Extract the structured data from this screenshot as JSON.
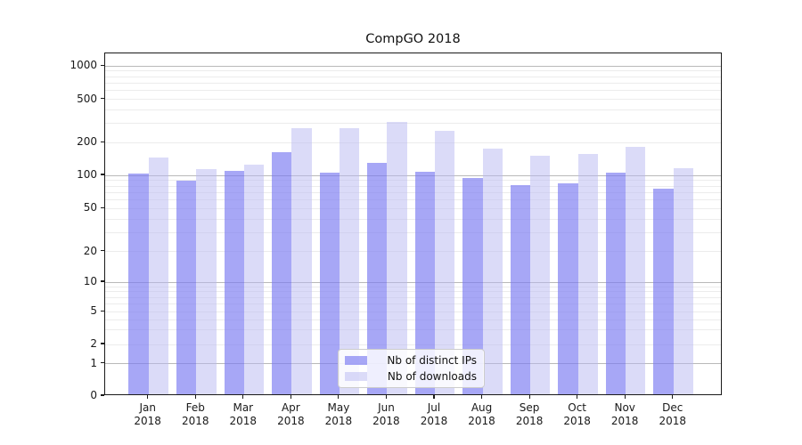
{
  "chart_data": {
    "type": "bar",
    "title": "CompGO 2018",
    "categories": [
      "Jan 2018",
      "Feb 2018",
      "Mar 2018",
      "Apr 2018",
      "May 2018",
      "Jun 2018",
      "Jul 2018",
      "Aug 2018",
      "Sep 2018",
      "Oct 2018",
      "Nov 2018",
      "Dec 2018"
    ],
    "series": [
      {
        "name": "Nb of distinct IPs",
        "values": [
          100,
          87,
          105,
          158,
          102,
          125,
          104,
          92,
          79,
          81,
          102,
          73
        ]
      },
      {
        "name": "Nb of downloads",
        "values": [
          140,
          111,
          122,
          260,
          262,
          300,
          250,
          169,
          147,
          151,
          176,
          113
        ]
      }
    ],
    "xlabel": "",
    "ylabel": "",
    "yscale": "symlog",
    "ytick_values": [
      0,
      1,
      2,
      5,
      10,
      20,
      50,
      100,
      200,
      500,
      1000
    ],
    "ytick_labels": [
      "0",
      "1",
      "2",
      "5",
      "10",
      "20",
      "50",
      "100",
      "200",
      "500",
      "1000"
    ],
    "ylim": [
      0,
      1350
    ],
    "grid": true,
    "legend_position": "lower center"
  },
  "colors": {
    "distinct_ips_fill": "rgba(121,121,241,0.66)",
    "downloads_fill": "rgba(184,184,241,0.5)",
    "distinct_ips_hex": "#a7a7f6",
    "downloads_hex": "#dbdbf8",
    "major_grid": "#b9b9b9",
    "minor_grid": "#ececec"
  }
}
